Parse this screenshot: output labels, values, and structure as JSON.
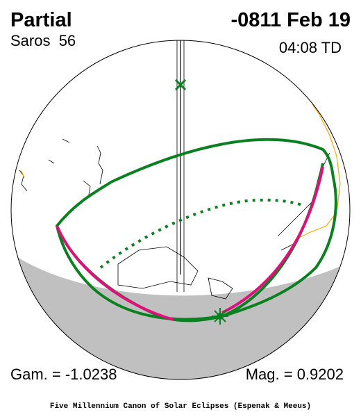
{
  "header": {
    "type": "Partial",
    "date": "-0811 Feb 19",
    "saros": "Saros  56",
    "time": "04:08 TD"
  },
  "footer": {
    "gamma": "Gam. = -1.0238",
    "magnitude": "Mag. = 0.9202",
    "credit": "Five Millennium Canon of Solar Eclipses (Espenak & Meeus)"
  }
}
